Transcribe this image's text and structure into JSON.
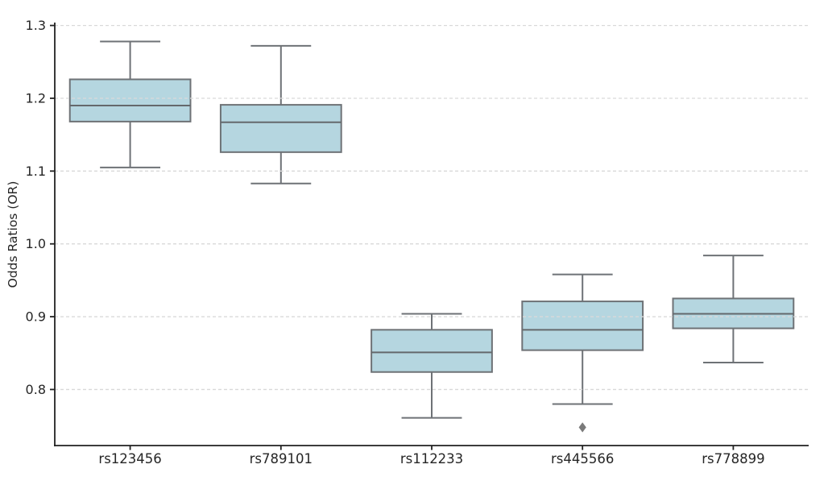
{
  "chart_data": {
    "type": "box",
    "title": "",
    "xlabel": "",
    "ylabel": "Odds Ratios (OR)",
    "categories": [
      "rs123456",
      "rs789101",
      "rs112233",
      "rs445566",
      "rs778899"
    ],
    "series": [
      {
        "name": "rs123456",
        "whisker_low": 1.105,
        "q1": 1.168,
        "median": 1.19,
        "q3": 1.226,
        "whisker_high": 1.278,
        "outliers": []
      },
      {
        "name": "rs789101",
        "whisker_low": 1.083,
        "q1": 1.126,
        "median": 1.167,
        "q3": 1.191,
        "whisker_high": 1.272,
        "outliers": []
      },
      {
        "name": "rs112233",
        "whisker_low": 0.761,
        "q1": 0.824,
        "median": 0.851,
        "q3": 0.882,
        "whisker_high": 0.904,
        "outliers": []
      },
      {
        "name": "rs445566",
        "whisker_low": 0.78,
        "q1": 0.854,
        "median": 0.882,
        "q3": 0.921,
        "whisker_high": 0.958,
        "outliers": [
          0.748
        ]
      },
      {
        "name": "rs778899",
        "whisker_low": 0.837,
        "q1": 0.884,
        "median": 0.904,
        "q3": 0.925,
        "whisker_high": 0.984,
        "outliers": []
      }
    ],
    "ylim": [
      0.723,
      1.304
    ],
    "yticks": [
      0.8,
      0.9,
      1.0,
      1.1,
      1.2,
      1.3
    ],
    "ytick_labels": [
      "0.8",
      "0.9",
      "1.0",
      "1.1",
      "1.2",
      "1.3"
    ],
    "grid": "horizontal-dashed-over-boxes",
    "legend": "none",
    "colors": {
      "background": "#ffffff",
      "box_fill": "#b5d6e0",
      "box_edge": "#6e7276",
      "whisker": "#6e7276",
      "median": "#64686c",
      "outlier": "#7a7a7a",
      "grid": "#d9d9d9",
      "axis": "#212121",
      "tick_label": "#262626"
    }
  }
}
